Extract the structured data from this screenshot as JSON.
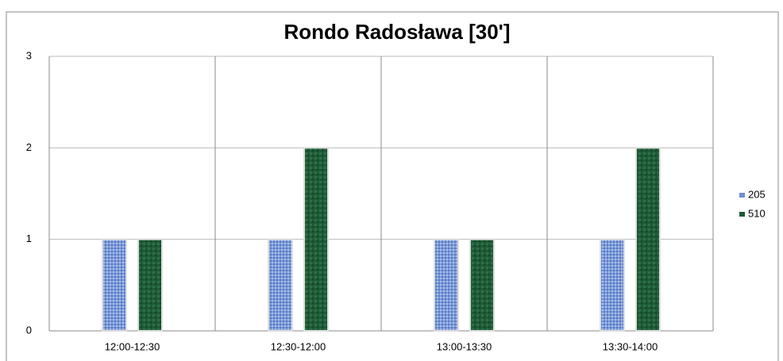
{
  "chart_data": {
    "type": "bar",
    "title": "Rondo Radosława [30']",
    "categories": [
      "12:00-12:30",
      "12:30-12:00",
      "13:00-13:30",
      "13:30-14:00"
    ],
    "series": [
      {
        "name": "205",
        "color": "#6f8fd0",
        "values": [
          1,
          1,
          1,
          1
        ]
      },
      {
        "name": "510",
        "color": "#1e5a36",
        "values": [
          1,
          2,
          1,
          2
        ]
      }
    ],
    "ylim": [
      0,
      3
    ],
    "yticks": [
      0,
      1,
      2,
      3
    ],
    "grid": true,
    "legend": "right"
  }
}
